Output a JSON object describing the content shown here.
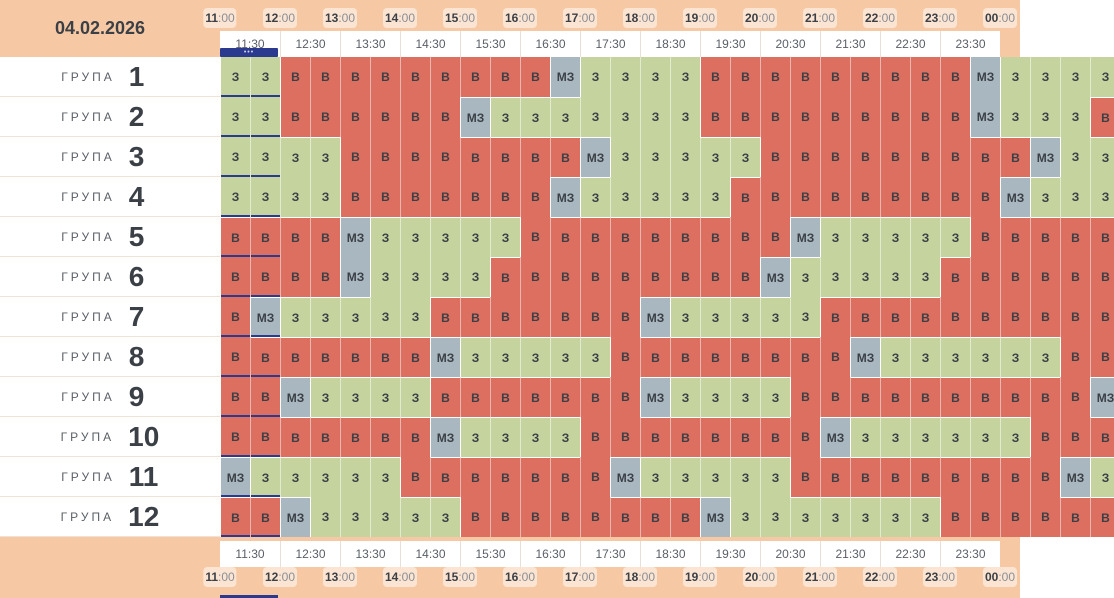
{
  "date": "04.02.2026",
  "hours": [
    "11",
    "12",
    "13",
    "14",
    "15",
    "16",
    "17",
    "18",
    "19",
    "20",
    "21",
    "22",
    "23",
    "00"
  ],
  "minutes_suffix": ":00",
  "half_labels": [
    "11:30",
    "12:30",
    "13:30",
    "14:30",
    "15:30",
    "16:30",
    "17:30",
    "18:30",
    "19:30",
    "20:30",
    "21:30",
    "22:30",
    "23:30"
  ],
  "now_indicator": "•••",
  "group_word": "ГРУПА",
  "groups": [
    {
      "num": "1",
      "cells": [
        "З",
        "З",
        "В",
        "В",
        "В",
        "В",
        "В",
        "В",
        "В",
        "В",
        "В",
        "МЗ",
        "З",
        "З",
        "З",
        "З",
        "В",
        "В",
        "В",
        "В",
        "В",
        "В",
        "В",
        "В",
        "В",
        "МЗ",
        "З",
        "З",
        "З",
        "З"
      ]
    },
    {
      "num": "2",
      "cells": [
        "З",
        "З",
        "В",
        "В",
        "В",
        "В",
        "В",
        "В",
        "МЗ",
        "З",
        "З",
        "З",
        "З",
        "З",
        "З",
        "З",
        "В",
        "В",
        "В",
        "В",
        "В",
        "В",
        "В",
        "В",
        "В",
        "МЗ",
        "З",
        "З",
        "З",
        "В"
      ]
    },
    {
      "num": "3",
      "cells": [
        "З",
        "З",
        "З",
        "З",
        "В",
        "В",
        "В",
        "В",
        "В",
        "В",
        "В",
        "В",
        "МЗ",
        "З",
        "З",
        "З",
        "З",
        "З",
        "В",
        "В",
        "В",
        "В",
        "В",
        "В",
        "В",
        "В",
        "В",
        "МЗ",
        "З",
        "З"
      ]
    },
    {
      "num": "4",
      "cells": [
        "З",
        "З",
        "З",
        "З",
        "В",
        "В",
        "В",
        "В",
        "В",
        "В",
        "В",
        "МЗ",
        "З",
        "З",
        "З",
        "З",
        "З",
        "В",
        "В",
        "В",
        "В",
        "В",
        "В",
        "В",
        "В",
        "В",
        "МЗ",
        "З",
        "З",
        "З"
      ]
    },
    {
      "num": "5",
      "cells": [
        "В",
        "В",
        "В",
        "В",
        "МЗ",
        "З",
        "З",
        "З",
        "З",
        "З",
        "В",
        "В",
        "В",
        "В",
        "В",
        "В",
        "В",
        "В",
        "В",
        "МЗ",
        "З",
        "З",
        "З",
        "З",
        "З",
        "В",
        "В",
        "В",
        "В",
        "В"
      ]
    },
    {
      "num": "6",
      "cells": [
        "В",
        "В",
        "В",
        "В",
        "МЗ",
        "З",
        "З",
        "З",
        "З",
        "В",
        "В",
        "В",
        "В",
        "В",
        "В",
        "В",
        "В",
        "В",
        "МЗ",
        "З",
        "З",
        "З",
        "З",
        "З",
        "В",
        "В",
        "В",
        "В",
        "В",
        "В"
      ]
    },
    {
      "num": "7",
      "cells": [
        "В",
        "МЗ",
        "З",
        "З",
        "З",
        "З",
        "З",
        "В",
        "В",
        "В",
        "В",
        "В",
        "В",
        "В",
        "МЗ",
        "З",
        "З",
        "З",
        "З",
        "З",
        "В",
        "В",
        "В",
        "В",
        "В",
        "В",
        "В",
        "В",
        "В",
        "В"
      ]
    },
    {
      "num": "8",
      "cells": [
        "В",
        "В",
        "В",
        "В",
        "В",
        "В",
        "В",
        "МЗ",
        "З",
        "З",
        "З",
        "З",
        "З",
        "В",
        "В",
        "В",
        "В",
        "В",
        "В",
        "В",
        "В",
        "МЗ",
        "З",
        "З",
        "З",
        "З",
        "З",
        "З",
        "В",
        "В"
      ]
    },
    {
      "num": "9",
      "cells": [
        "В",
        "В",
        "МЗ",
        "З",
        "З",
        "З",
        "З",
        "В",
        "В",
        "В",
        "В",
        "В",
        "В",
        "В",
        "МЗ",
        "З",
        "З",
        "З",
        "З",
        "В",
        "В",
        "В",
        "В",
        "В",
        "В",
        "В",
        "В",
        "В",
        "В",
        "МЗ"
      ]
    },
    {
      "num": "10",
      "cells": [
        "В",
        "В",
        "В",
        "В",
        "В",
        "В",
        "В",
        "МЗ",
        "З",
        "З",
        "З",
        "З",
        "В",
        "В",
        "В",
        "В",
        "В",
        "В",
        "В",
        "В",
        "МЗ",
        "З",
        "З",
        "З",
        "З",
        "З",
        "З",
        "В",
        "В",
        "В"
      ]
    },
    {
      "num": "11",
      "cells": [
        "МЗ",
        "З",
        "З",
        "З",
        "З",
        "З",
        "В",
        "В",
        "В",
        "В",
        "В",
        "В",
        "В",
        "МЗ",
        "З",
        "З",
        "З",
        "З",
        "З",
        "В",
        "В",
        "В",
        "В",
        "В",
        "В",
        "В",
        "В",
        "В",
        "МЗ",
        "З"
      ]
    },
    {
      "num": "12",
      "cells": [
        "В",
        "В",
        "МЗ",
        "З",
        "З",
        "З",
        "З",
        "З",
        "В",
        "В",
        "В",
        "В",
        "В",
        "В",
        "В",
        "В",
        "МЗ",
        "З",
        "З",
        "З",
        "З",
        "З",
        "З",
        "З",
        "В",
        "В",
        "В",
        "В",
        "В",
        "В"
      ]
    }
  ],
  "status_colors": {
    "В": "#dc6f5f",
    "З": "#c5d49e",
    "МЗ": "#a9b8c0"
  },
  "divider_color": "#ffffff"
}
